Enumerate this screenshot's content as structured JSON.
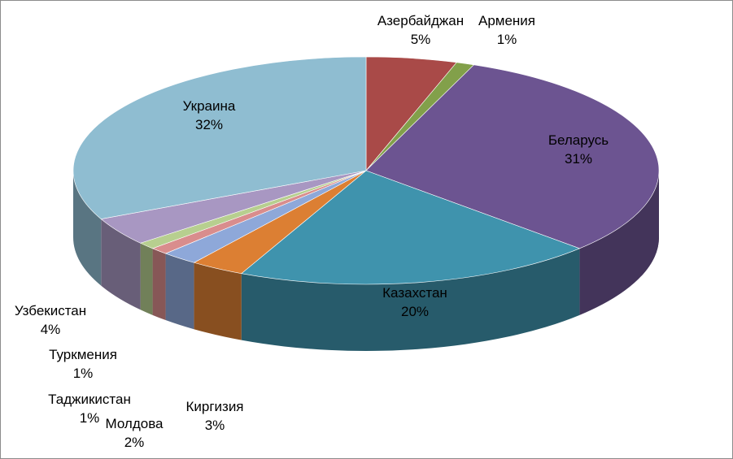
{
  "chart_data": {
    "type": "pie",
    "style": "3d-exploded-none",
    "slices": [
      {
        "label": "Азербайджан",
        "pct_label": "5%",
        "value": 5,
        "color": "#a94a48"
      },
      {
        "label": "Армения",
        "pct_label": "1%",
        "value": 1,
        "color": "#82a04a"
      },
      {
        "label": "Беларусь",
        "pct_label": "31%",
        "value": 31,
        "color": "#6c5491"
      },
      {
        "label": "Казахстан",
        "pct_label": "20%",
        "value": 20,
        "color": "#3f93ad"
      },
      {
        "label": "Киргизия",
        "pct_label": "3%",
        "value": 3,
        "color": "#dc7f33"
      },
      {
        "label": "Молдова",
        "pct_label": "2%",
        "value": 2,
        "color": "#8ea8d9"
      },
      {
        "label": "Таджикистан",
        "pct_label": "1%",
        "value": 1,
        "color": "#d98d8d"
      },
      {
        "label": "Туркмения",
        "pct_label": "1%",
        "value": 1,
        "color": "#b7cf8f"
      },
      {
        "label": "Узбекистан",
        "pct_label": "4%",
        "value": 4,
        "color": "#a897c2"
      },
      {
        "label": "Украина",
        "pct_label": "32%",
        "value": 32,
        "color": "#8fbdd1"
      }
    ]
  }
}
